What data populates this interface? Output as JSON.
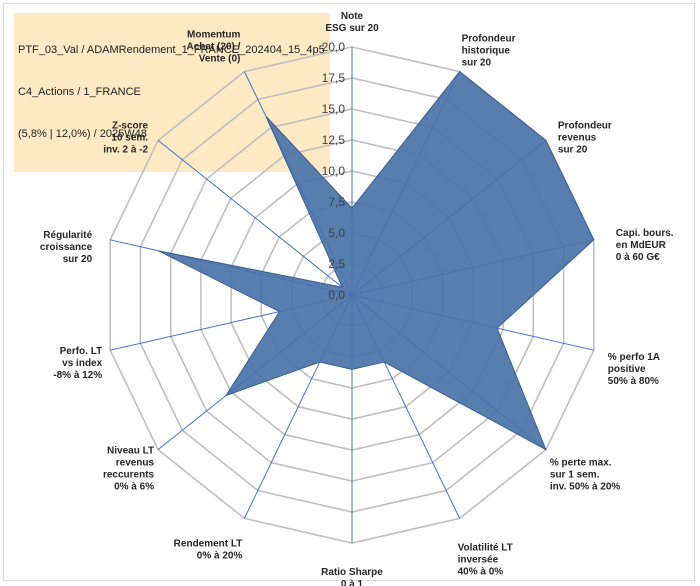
{
  "title": {
    "lines": [
      "PTF_03_Val / ADAMRendement_1_FRANCE_202404_15_4p5",
      "C4_Actions / 1_FRANCE",
      "(5,8% | 12,0%) / 2025W48"
    ]
  },
  "chart_data": {
    "type": "radar",
    "axis_range": [
      0,
      20
    ],
    "ticks": [
      "0,0",
      "2,5",
      "5,0",
      "7,5",
      "10,0",
      "12,5",
      "15,0",
      "17,5",
      "20,0"
    ],
    "categories": [
      [
        "Note",
        "ESG sur 20"
      ],
      [
        "Profondeur",
        "historique",
        "sur 20"
      ],
      [
        "Profondeur",
        "revenus",
        "sur 20"
      ],
      [
        "Capi. bours.",
        "en MdEUR",
        "0 à 60 G€"
      ],
      [
        "% perfo 1A",
        "positive",
        "50% à 80%"
      ],
      [
        "% perte max.",
        "sur 1 sem.",
        "inv. 50% à 20%"
      ],
      [
        "Volatilité LT",
        "inversée",
        "40% à 0%"
      ],
      [
        "Ratio Sharpe",
        "0 à 1"
      ],
      [
        "Rendement LT",
        "0% à 20%"
      ],
      [
        "Niveau LT",
        "revenus",
        "reccurents",
        "0% à 6%"
      ],
      [
        "Perfo. LT",
        "vs index",
        "-8% à 12%"
      ],
      [
        "Régularité",
        "croissance",
        "sur 20"
      ],
      [
        "Z-score",
        "10 sem.",
        "inv. 2 à -2"
      ],
      [
        "Momentum",
        "Achat (20) /",
        "Vente (0)"
      ]
    ],
    "series": [
      {
        "values": [
          7,
          20,
          20,
          20,
          12,
          20,
          6,
          6,
          6,
          13,
          6,
          16,
          1,
          16
        ]
      }
    ],
    "colors": {
      "fill": "#4a72a8",
      "stroke": "#3b5f8f",
      "grid": "#bfbfbf",
      "spoke": "#4472c4",
      "highlight": "#fde9c4"
    },
    "grid": true,
    "legend": "none"
  }
}
